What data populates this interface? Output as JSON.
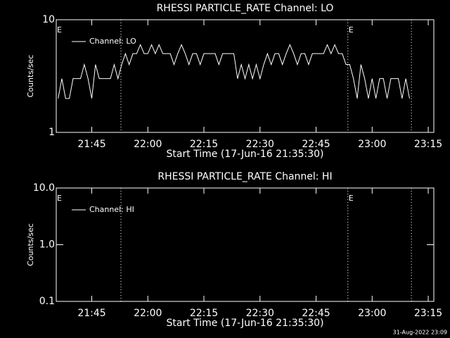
{
  "chart_data": [
    {
      "type": "line",
      "title": "RHESSI PARTICLE_RATE Channel: LO",
      "xlabel": "Start Time (17-Jun-16 21:35:30)",
      "ylabel": "Counts/sec",
      "log_y": true,
      "color": "#ffffff",
      "xlim": [
        1295.5,
        1396.5
      ],
      "xticks": [
        {
          "value": 1305,
          "label": "21:45"
        },
        {
          "value": 1320,
          "label": "22:00"
        },
        {
          "value": 1335,
          "label": "22:15"
        },
        {
          "value": 1350,
          "label": "22:30"
        },
        {
          "value": 1365,
          "label": "22:45"
        },
        {
          "value": 1380,
          "label": "23:00"
        },
        {
          "value": 1395,
          "label": "23:15"
        }
      ],
      "ylim": [
        1,
        10
      ],
      "yticks": [
        1,
        10
      ],
      "vlines": [
        1312.8,
        1373.5,
        1390.5
      ],
      "annotations": [
        {
          "x": 1295.5,
          "text": "E"
        },
        {
          "x": 1373.5,
          "text": "E"
        }
      ],
      "series": [
        {
          "name": "Channel: LO",
          "color": "#ffffff",
          "x": [
            1296,
            1297,
            1298,
            1299,
            1300,
            1301,
            1302,
            1303,
            1304,
            1305,
            1306,
            1307,
            1308,
            1309,
            1310,
            1311,
            1312,
            1313,
            1314,
            1315,
            1316,
            1317,
            1318,
            1319,
            1320,
            1321,
            1322,
            1323,
            1324,
            1325,
            1326,
            1327,
            1328,
            1329,
            1330,
            1331,
            1332,
            1333,
            1334,
            1335,
            1336,
            1337,
            1338,
            1339,
            1340,
            1341,
            1342,
            1343,
            1344,
            1345,
            1346,
            1347,
            1348,
            1349,
            1350,
            1351,
            1352,
            1353,
            1354,
            1355,
            1356,
            1357,
            1358,
            1359,
            1360,
            1361,
            1362,
            1363,
            1364,
            1365,
            1366,
            1367,
            1368,
            1369,
            1370,
            1371,
            1372,
            1373,
            1374,
            1375,
            1376,
            1377,
            1378,
            1379,
            1380,
            1381,
            1382,
            1383,
            1384,
            1385,
            1386,
            1387,
            1388,
            1389,
            1390
          ],
          "values": [
            2,
            3,
            2,
            2,
            3,
            3,
            3,
            4,
            3,
            2,
            4,
            3,
            3,
            3,
            3,
            4,
            3,
            4,
            5,
            4,
            5,
            5,
            6,
            5,
            5,
            6,
            5,
            6,
            5,
            5,
            5,
            4,
            5,
            6,
            5,
            4,
            5,
            5,
            4,
            5,
            5,
            5,
            5,
            4,
            5,
            5,
            5,
            5,
            3,
            4,
            3,
            4,
            3,
            4,
            3,
            4,
            5,
            4,
            5,
            5,
            4,
            5,
            6,
            5,
            4,
            5,
            5,
            4,
            5,
            5,
            5,
            5,
            6,
            5,
            6,
            5,
            5,
            4,
            4,
            3,
            2,
            4,
            3,
            2,
            3,
            2,
            3,
            3,
            2,
            3,
            3,
            3,
            2,
            3,
            2
          ]
        }
      ]
    },
    {
      "type": "line",
      "title": "RHESSI PARTICLE_RATE Channel: HI",
      "xlabel": "Start Time (17-Jun-16 21:35:30)",
      "ylabel": "Counts/sec",
      "log_y": true,
      "color": "#ffffff",
      "xlim": [
        1295.5,
        1396.5
      ],
      "xticks": [
        {
          "value": 1305,
          "label": "21:45"
        },
        {
          "value": 1320,
          "label": "22:00"
        },
        {
          "value": 1335,
          "label": "22:15"
        },
        {
          "value": 1350,
          "label": "22:30"
        },
        {
          "value": 1365,
          "label": "22:45"
        },
        {
          "value": 1380,
          "label": "23:00"
        },
        {
          "value": 1395,
          "label": "23:15"
        }
      ],
      "ylim": [
        0.1,
        10
      ],
      "yticks": [
        {
          "value": 0.1,
          "label": "0.1"
        },
        {
          "value": 1,
          "label": "1.0"
        },
        {
          "value": 10,
          "label": "10.0"
        }
      ],
      "vlines": [
        1312.8,
        1373.5,
        1390.5
      ],
      "annotations": [
        {
          "x": 1295.5,
          "text": "E"
        },
        {
          "x": 1373.5,
          "text": "E"
        }
      ],
      "series": [
        {
          "name": "Channel: HI",
          "color": "#ffffff",
          "x": [],
          "values": []
        }
      ]
    }
  ],
  "footer": "31-Aug-2022 23:09"
}
